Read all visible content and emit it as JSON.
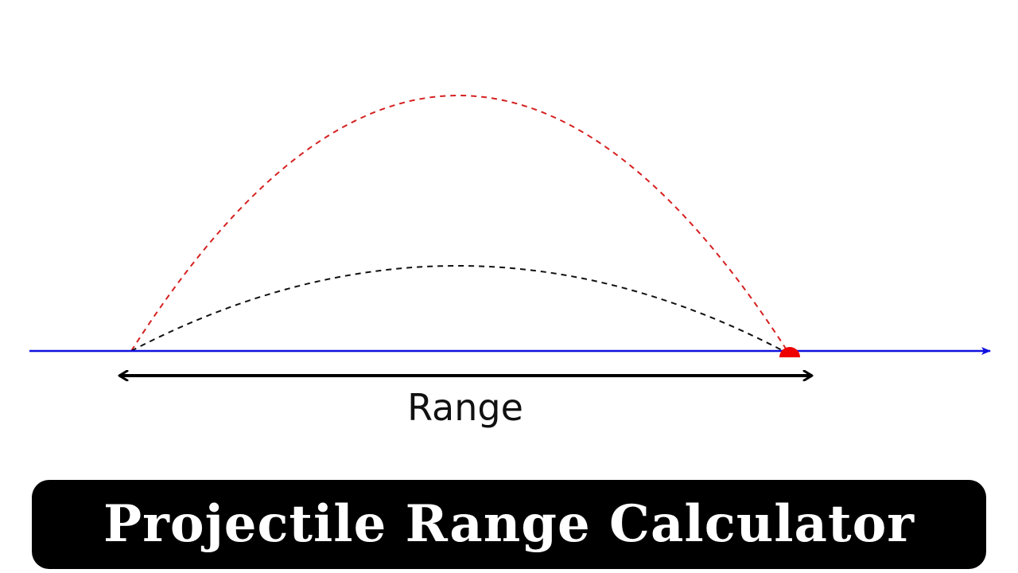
{
  "diagram": {
    "range_label": "Range",
    "title": "Projectile Range Calculator"
  }
}
